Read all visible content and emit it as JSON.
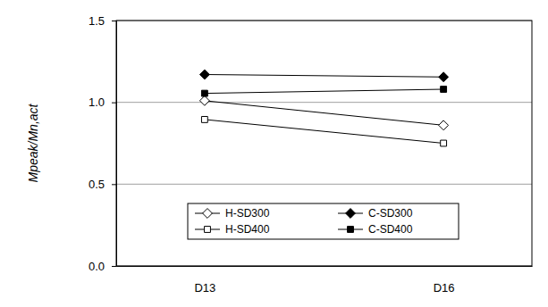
{
  "chart_data": {
    "type": "line",
    "y_label": "Mpeak/Mn,act",
    "categories": [
      "D13",
      "D16"
    ],
    "series": [
      {
        "name": "H-SD300",
        "color": "#000000",
        "marker": "diamond-open",
        "values": [
          1.01,
          0.86
        ]
      },
      {
        "name": "C-SD300",
        "color": "#000000",
        "marker": "diamond",
        "values": [
          1.17,
          1.155
        ]
      },
      {
        "name": "H-SD400",
        "color": "#000000",
        "marker": "square-open",
        "values": [
          0.895,
          0.75
        ]
      },
      {
        "name": "C-SD400",
        "color": "#000000",
        "marker": "square",
        "values": [
          1.055,
          1.08
        ]
      }
    ],
    "ylim": [
      0,
      1.5
    ],
    "yticks": [
      {
        "value": 0,
        "label": "0.0"
      },
      {
        "value": 0.5,
        "label": "0.5"
      },
      {
        "value": 1,
        "label": "1.0"
      },
      {
        "value": 1.5,
        "label": "1.5"
      }
    ],
    "grid": true,
    "legend": "bottom"
  }
}
